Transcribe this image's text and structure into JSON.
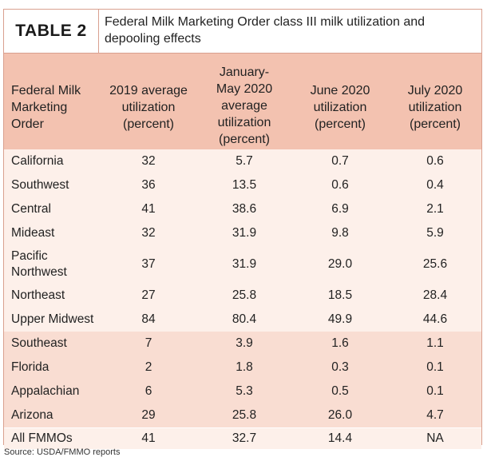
{
  "table_label": "TABLE 2",
  "title": "Federal Milk Marketing Order class III milk utilization and depooling effects",
  "headers": [
    [
      "Federal Milk",
      "Marketing",
      "Order"
    ],
    [
      "2019 average",
      "utilization",
      "(percent)"
    ],
    [
      "January-",
      "May 2020",
      "average",
      "utilization",
      "(percent)"
    ],
    [
      "June 2020",
      "utilization",
      "(percent)"
    ],
    [
      "July 2020",
      "utilization",
      "(percent)"
    ]
  ],
  "rows": [
    {
      "order": [
        "California"
      ],
      "y2019": "32",
      "janmay2020": "5.7",
      "jun2020": "0.7",
      "jul2020": "0.6"
    },
    {
      "order": [
        "Southwest"
      ],
      "y2019": "36",
      "janmay2020": "13.5",
      "jun2020": "0.6",
      "jul2020": "0.4"
    },
    {
      "order": [
        "Central"
      ],
      "y2019": "41",
      "janmay2020": "38.6",
      "jun2020": "6.9",
      "jul2020": "2.1"
    },
    {
      "order": [
        "Mideast"
      ],
      "y2019": "32",
      "janmay2020": "31.9",
      "jun2020": "9.8",
      "jul2020": "5.9"
    },
    {
      "order": [
        "Pacific",
        "Northwest"
      ],
      "y2019": "37",
      "janmay2020": "31.9",
      "jun2020": "29.0",
      "jul2020": "25.6"
    },
    {
      "order": [
        "Northeast"
      ],
      "y2019": "27",
      "janmay2020": "25.8",
      "jun2020": "18.5",
      "jul2020": "28.4"
    },
    {
      "order": [
        "Upper Midwest"
      ],
      "y2019": "84",
      "janmay2020": "80.4",
      "jun2020": "49.9",
      "jul2020": "44.6"
    },
    {
      "order": [
        "Southeast"
      ],
      "y2019": "7",
      "janmay2020": "3.9",
      "jun2020": "1.6",
      "jul2020": "1.1"
    },
    {
      "order": [
        "Florida"
      ],
      "y2019": "2",
      "janmay2020": "1.8",
      "jun2020": "0.3",
      "jul2020": "0.1"
    },
    {
      "order": [
        "Appalachian"
      ],
      "y2019": "6",
      "janmay2020": "5.3",
      "jun2020": "0.5",
      "jul2020": "0.1"
    },
    {
      "order": [
        "Arizona"
      ],
      "y2019": "29",
      "janmay2020": "25.8",
      "jun2020": "26.0",
      "jul2020": "4.7"
    },
    {
      "order": [
        "All FMMOs"
      ],
      "y2019": "41",
      "janmay2020": "32.7",
      "jun2020": "14.4",
      "jul2020": "NA"
    }
  ],
  "source": "Source: USDA/FMMO reports",
  "colors": {
    "header_bg": "#f3c2b0",
    "row_light": "#fdf0ea",
    "row_mid": "#f9ddd2",
    "border": "#d9a08f"
  }
}
